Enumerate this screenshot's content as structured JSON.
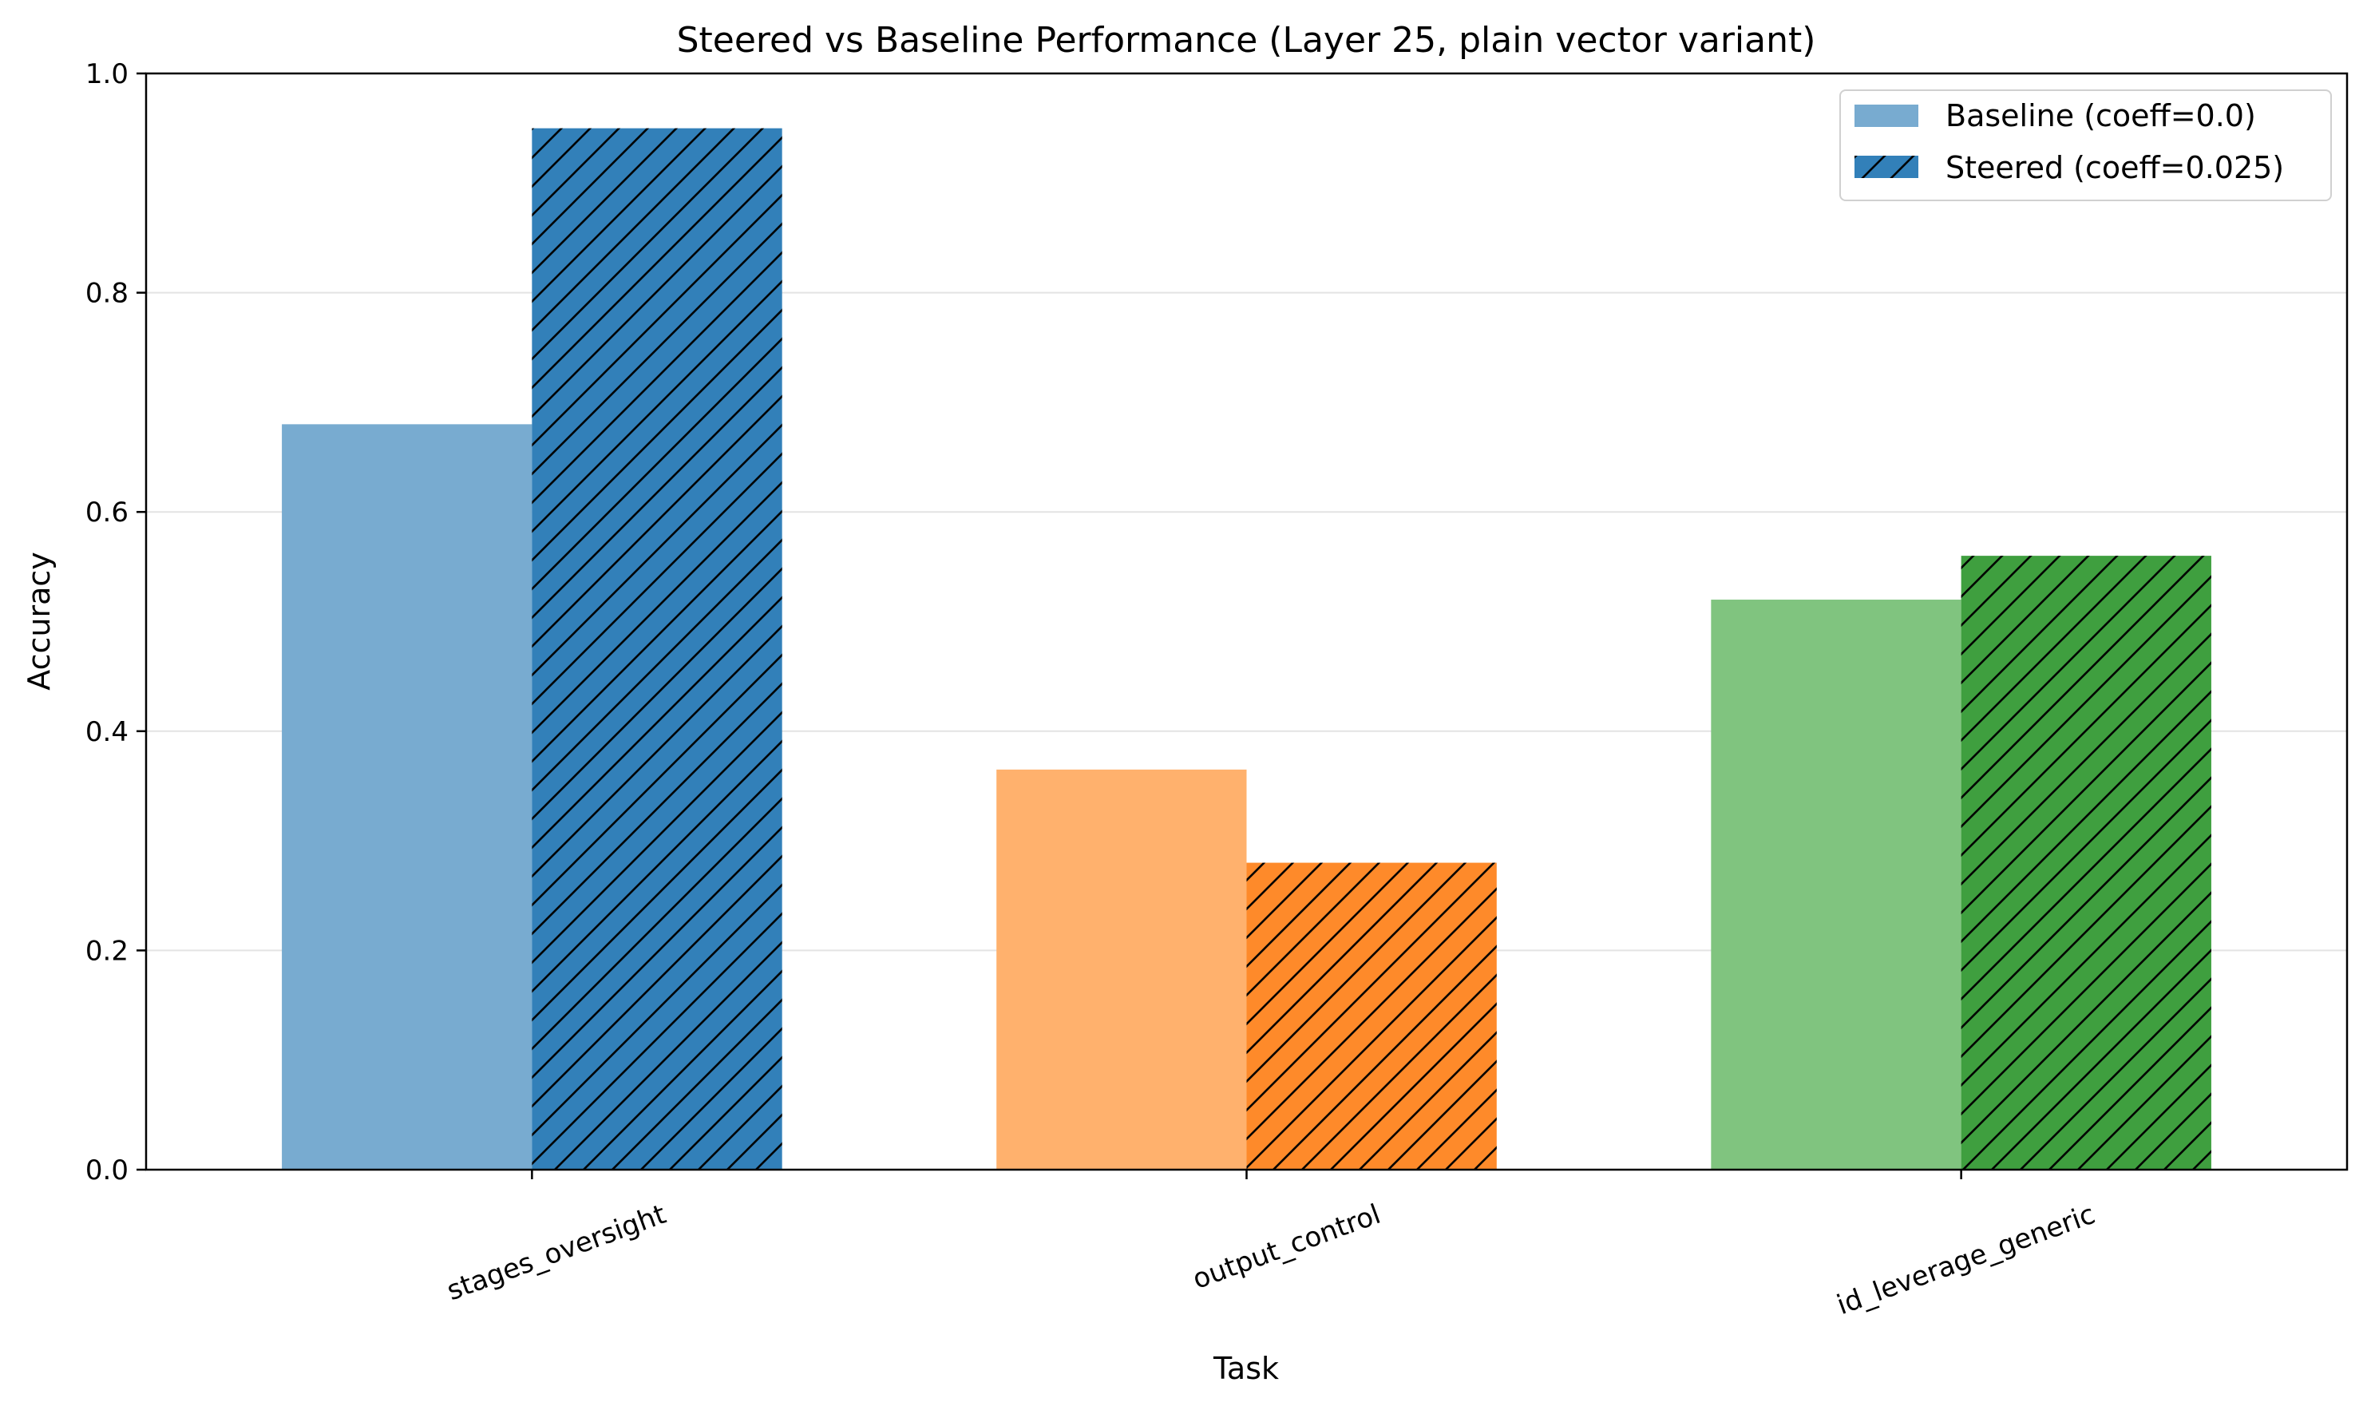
{
  "chart_data": {
    "type": "bar",
    "title": "Steered vs Baseline Performance (Layer 25, plain vector variant)",
    "xlabel": "Task",
    "ylabel": "Accuracy",
    "ylim": [
      0,
      1.0
    ],
    "yticks": [
      "0.0",
      "0.2",
      "0.4",
      "0.6",
      "0.8",
      "1.0"
    ],
    "grid": "y-major",
    "legend_position": "top-right",
    "categories": [
      "stages_oversight",
      "output_control",
      "id_leverage_generic"
    ],
    "category_colors": {
      "baseline": [
        "#78abd0",
        "#ffb16d",
        "#80c47f"
      ],
      "steered": [
        "#3280b9",
        "#fe8a2a",
        "#3f9f3f"
      ]
    },
    "series": [
      {
        "name": "Baseline (coeff=0.0)",
        "values": [
          0.68,
          0.365,
          0.52
        ],
        "hatch": false
      },
      {
        "name": "Steered (coeff=0.025)",
        "values": [
          0.95,
          0.28,
          0.56
        ],
        "hatch": true
      }
    ]
  }
}
